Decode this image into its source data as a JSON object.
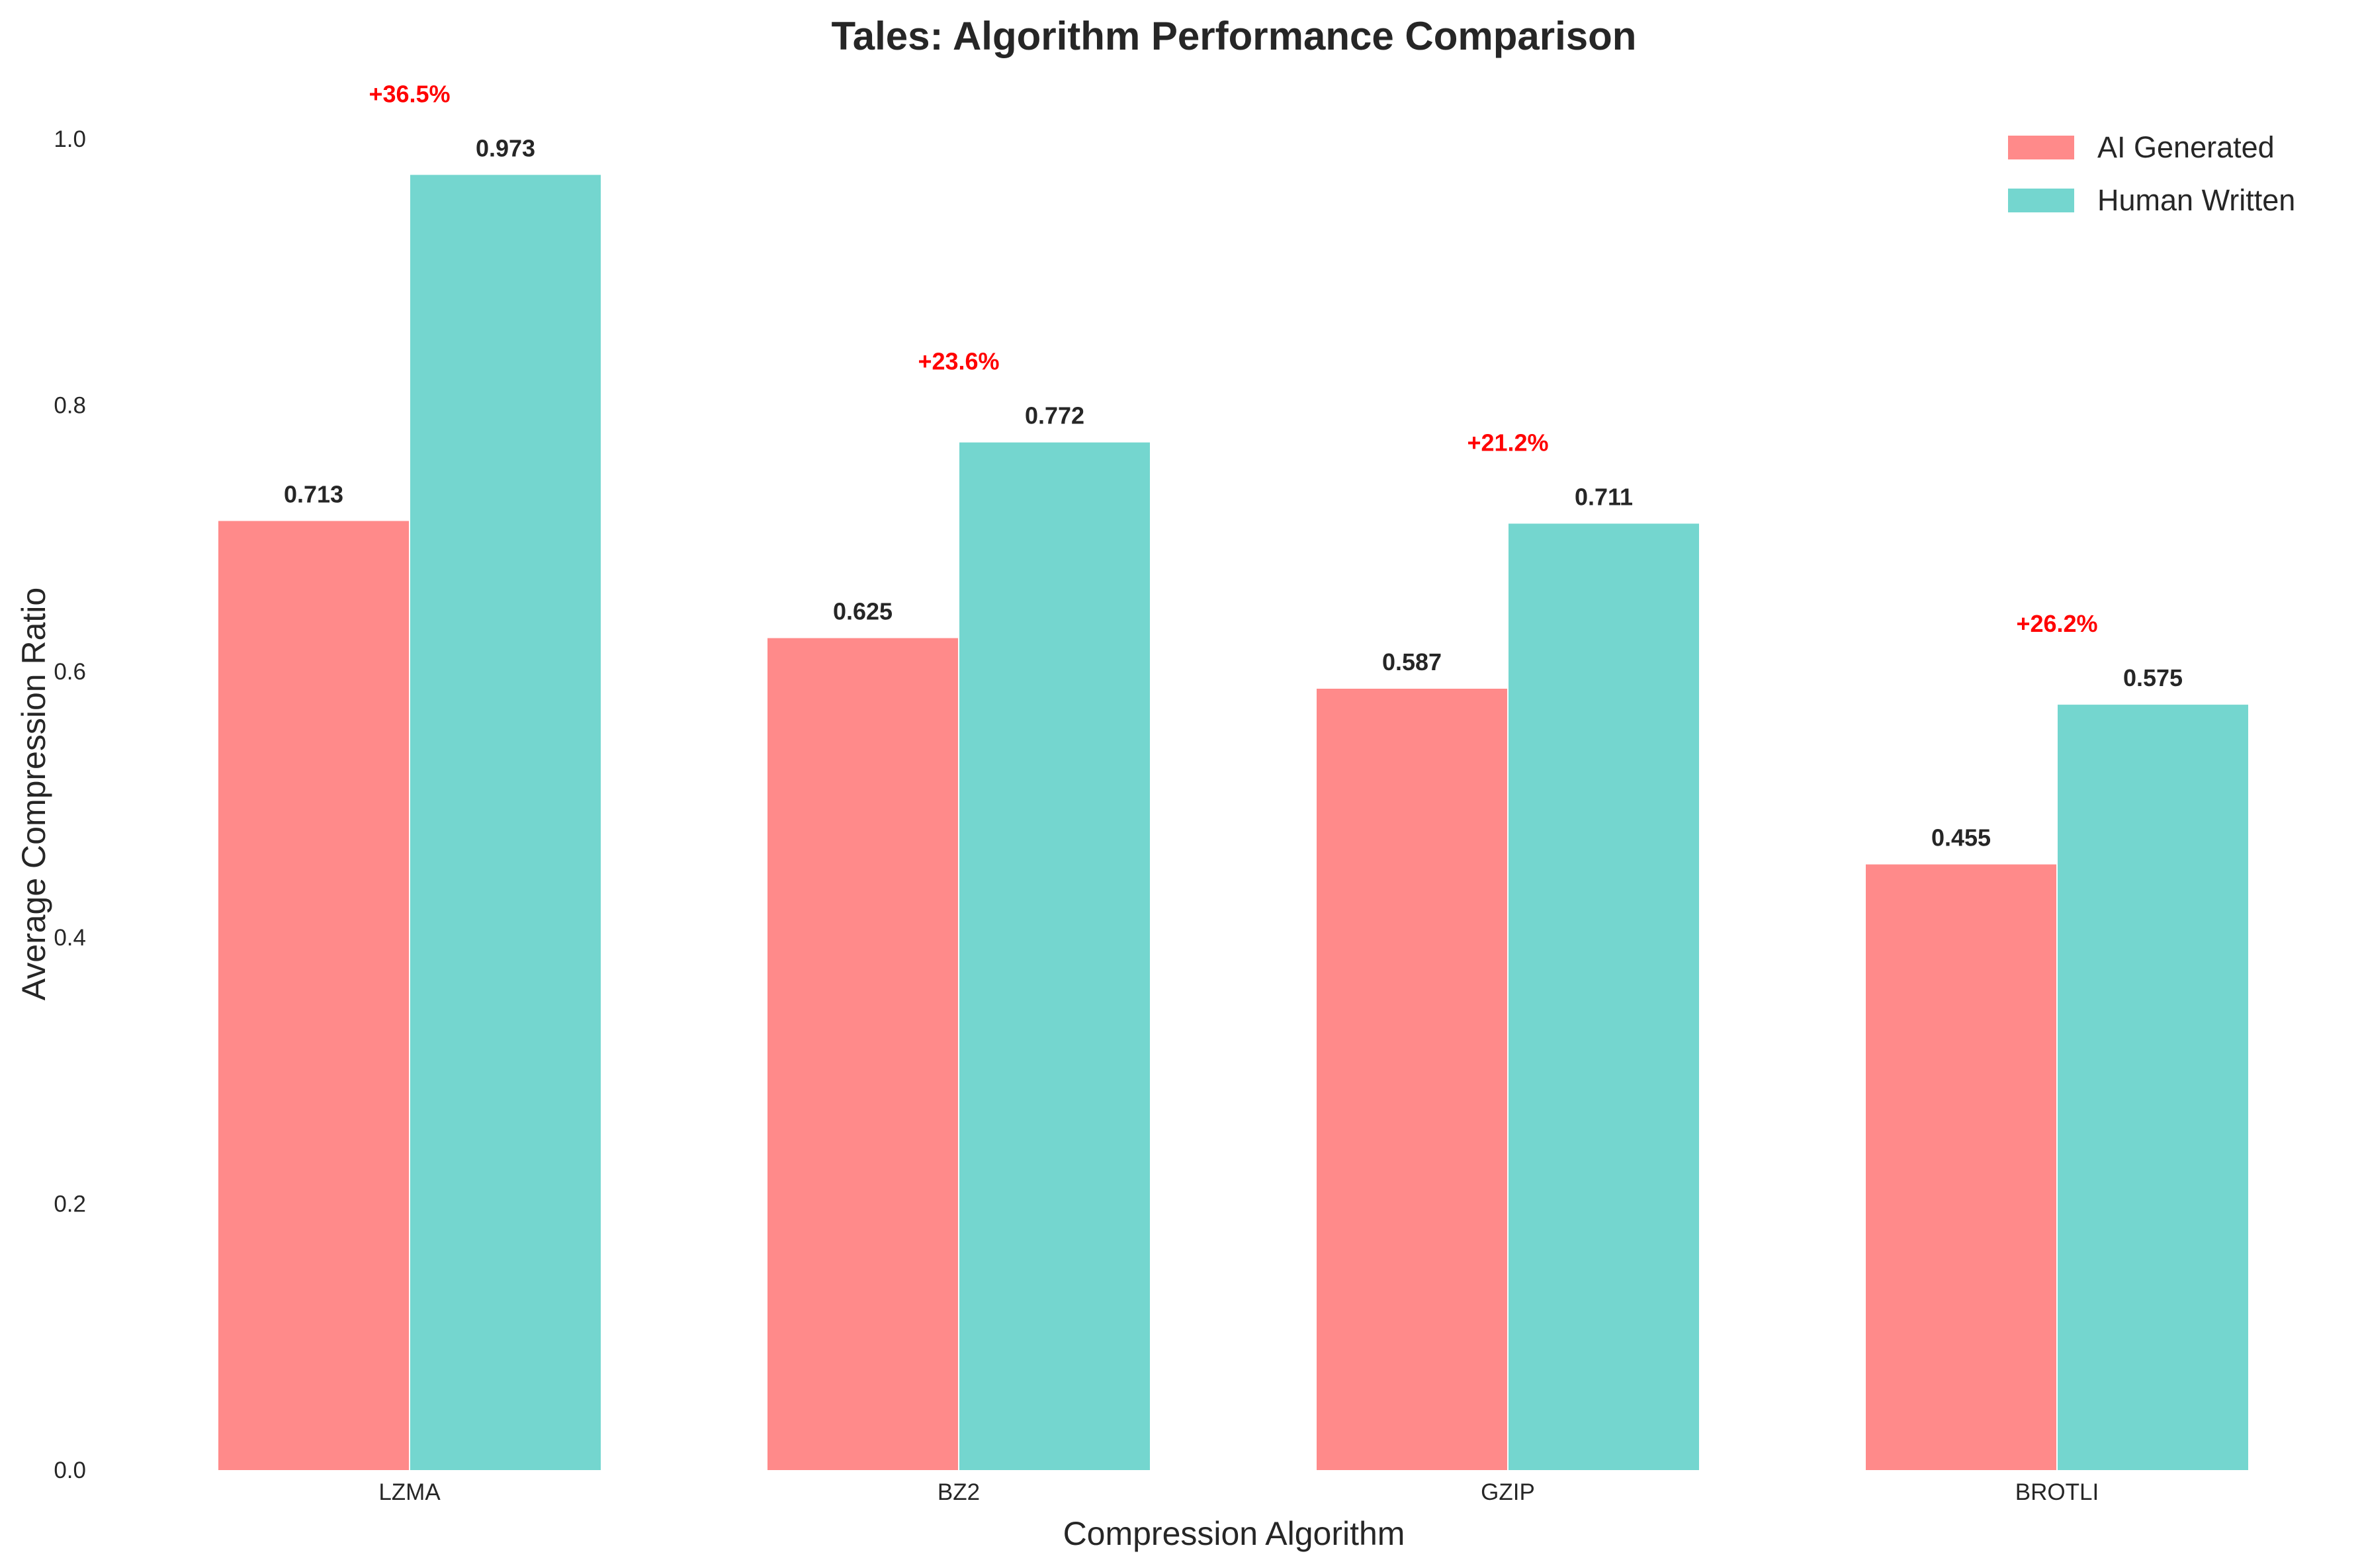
{
  "chart_data": {
    "type": "bar",
    "title": "Tales: Algorithm Performance Comparison",
    "xlabel": "Compression Algorithm",
    "ylabel": "Average Compression Ratio",
    "categories": [
      "LZMA",
      "BZ2",
      "GZIP",
      "BROTLI"
    ],
    "series": [
      {
        "name": "AI Generated",
        "color": "#ff8a8a",
        "values": [
          0.713,
          0.625,
          0.587,
          0.455
        ],
        "labels": [
          "0.713",
          "0.625",
          "0.587",
          "0.455"
        ]
      },
      {
        "name": "Human Written",
        "color": "#74d6cf",
        "values": [
          0.973,
          0.772,
          0.711,
          0.575
        ],
        "labels": [
          "0.973",
          "0.772",
          "0.711",
          "0.575"
        ]
      }
    ],
    "annotations": [
      "+36.5%",
      "+23.6%",
      "+21.2%",
      "+26.2%"
    ],
    "annotation_color": "#ff0000",
    "ylim": [
      0,
      1.0
    ],
    "yticks": [
      "0.0",
      "0.2",
      "0.4",
      "0.6",
      "0.8",
      "1.0"
    ],
    "grid": false,
    "legend_position": "top-right"
  }
}
